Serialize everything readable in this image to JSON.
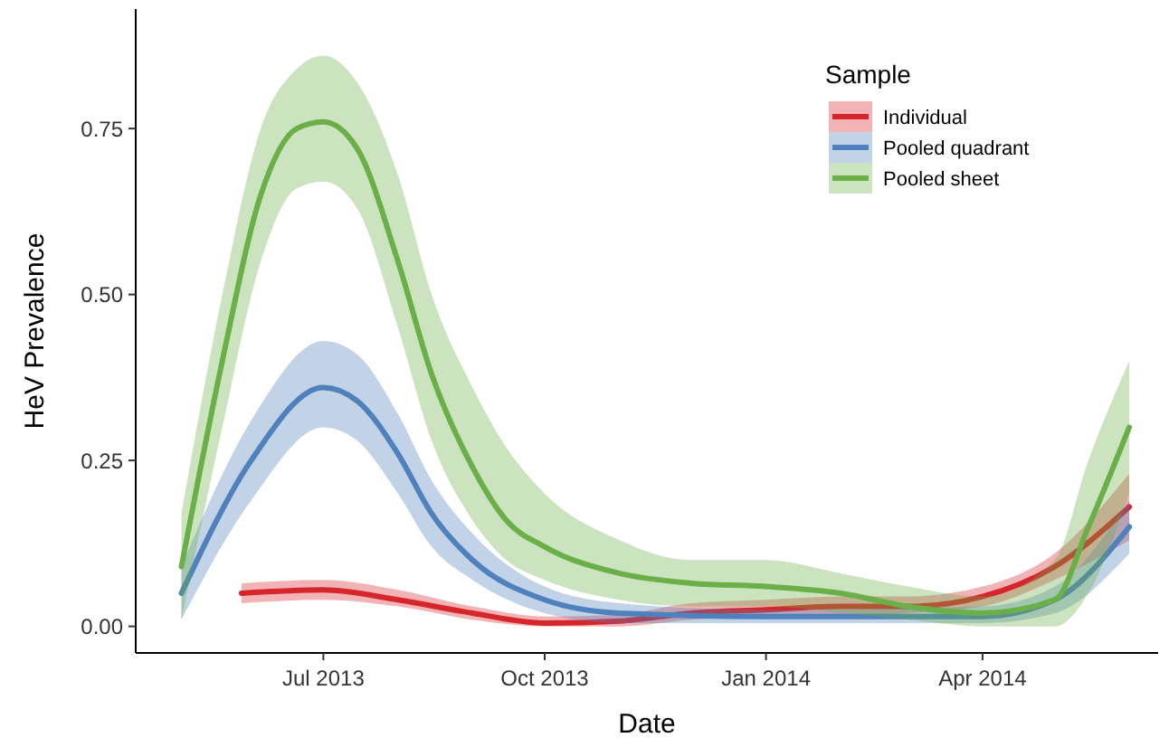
{
  "chart_data": {
    "type": "line",
    "xlabel": "Date",
    "ylabel": "HeV Prevalence",
    "legend_title": "Sample",
    "legend": "top right",
    "grid": false,
    "line_style": "solid",
    "xlim": [
      "2013-04-14",
      "2014-06-13"
    ],
    "ylim": [
      -0.04,
      0.93
    ],
    "xticks": [
      {
        "value": "2013-07-01",
        "label": "Jul 2013"
      },
      {
        "value": "2013-10-01",
        "label": "Oct 2013"
      },
      {
        "value": "2014-01-01",
        "label": "Jan 2014"
      },
      {
        "value": "2014-04-01",
        "label": "Apr 2014"
      }
    ],
    "yticks": [
      {
        "value": 0,
        "label": "0.00"
      },
      {
        "value": 0.25,
        "label": "0.25"
      },
      {
        "value": 0.5,
        "label": "0.50"
      },
      {
        "value": 0.75,
        "label": "0.75"
      }
    ],
    "series": [
      {
        "name": "Individual",
        "color": "#d7262b",
        "x": [
          "2013-05-28",
          "2013-07-01",
          "2013-08-01",
          "2013-09-01",
          "2013-10-01",
          "2013-11-01",
          "2013-12-01",
          "2014-01-01",
          "2014-02-01",
          "2014-03-01",
          "2014-04-01",
          "2014-05-01",
          "2014-06-01"
        ],
        "values": [
          0.05,
          0.055,
          0.04,
          0.02,
          0.005,
          0.008,
          0.02,
          0.025,
          0.03,
          0.03,
          0.045,
          0.09,
          0.18
        ],
        "lower": [
          0.035,
          0.04,
          0.03,
          0.01,
          0,
          0,
          0.01,
          0.015,
          0.015,
          0.02,
          0.03,
          0.07,
          0.13
        ],
        "upper": [
          0.065,
          0.07,
          0.055,
          0.03,
          0.015,
          0.018,
          0.035,
          0.04,
          0.045,
          0.045,
          0.06,
          0.11,
          0.23
        ]
      },
      {
        "name": "Pooled quadrant",
        "color": "#4f81bd",
        "x": [
          "2013-05-03",
          "2013-06-01",
          "2013-07-01",
          "2013-07-15",
          "2013-08-01",
          "2013-08-15",
          "2013-09-01",
          "2013-10-01",
          "2013-11-01",
          "2014-01-01",
          "2014-04-01",
          "2014-05-01",
          "2014-06-01"
        ],
        "values": [
          0.05,
          0.25,
          0.36,
          0.34,
          0.26,
          0.17,
          0.1,
          0.04,
          0.02,
          0.015,
          0.015,
          0.04,
          0.15
        ],
        "lower": [
          0.01,
          0.19,
          0.3,
          0.28,
          0.2,
          0.12,
          0.07,
          0.02,
          0.005,
          0.005,
          0.005,
          0.02,
          0.11
        ],
        "upper": [
          0.09,
          0.31,
          0.43,
          0.41,
          0.32,
          0.22,
          0.14,
          0.06,
          0.035,
          0.025,
          0.03,
          0.06,
          0.19
        ]
      },
      {
        "name": "Pooled sheet",
        "color": "#6aaf47",
        "x": [
          "2013-05-03",
          "2013-05-20",
          "2013-06-05",
          "2013-06-20",
          "2013-07-01",
          "2013-07-15",
          "2013-08-01",
          "2013-08-15",
          "2013-09-01",
          "2013-09-15",
          "2013-10-01",
          "2013-11-01",
          "2013-12-01",
          "2014-01-01",
          "2014-02-01",
          "2014-03-01",
          "2014-04-01",
          "2014-05-01",
          "2014-05-15",
          "2014-06-01"
        ],
        "values": [
          0.09,
          0.4,
          0.65,
          0.75,
          0.76,
          0.72,
          0.55,
          0.38,
          0.24,
          0.16,
          0.12,
          0.08,
          0.065,
          0.06,
          0.05,
          0.03,
          0.02,
          0.04,
          0.15,
          0.3
        ],
        "lower": [
          0.01,
          0.3,
          0.55,
          0.66,
          0.67,
          0.63,
          0.45,
          0.28,
          0.16,
          0.1,
          0.07,
          0.04,
          0.03,
          0.03,
          0.02,
          0.01,
          0,
          0,
          0.05,
          0.2
        ],
        "upper": [
          0.17,
          0.5,
          0.75,
          0.84,
          0.86,
          0.82,
          0.68,
          0.5,
          0.36,
          0.27,
          0.2,
          0.13,
          0.1,
          0.1,
          0.08,
          0.06,
          0.045,
          0.1,
          0.25,
          0.4
        ]
      }
    ]
  }
}
